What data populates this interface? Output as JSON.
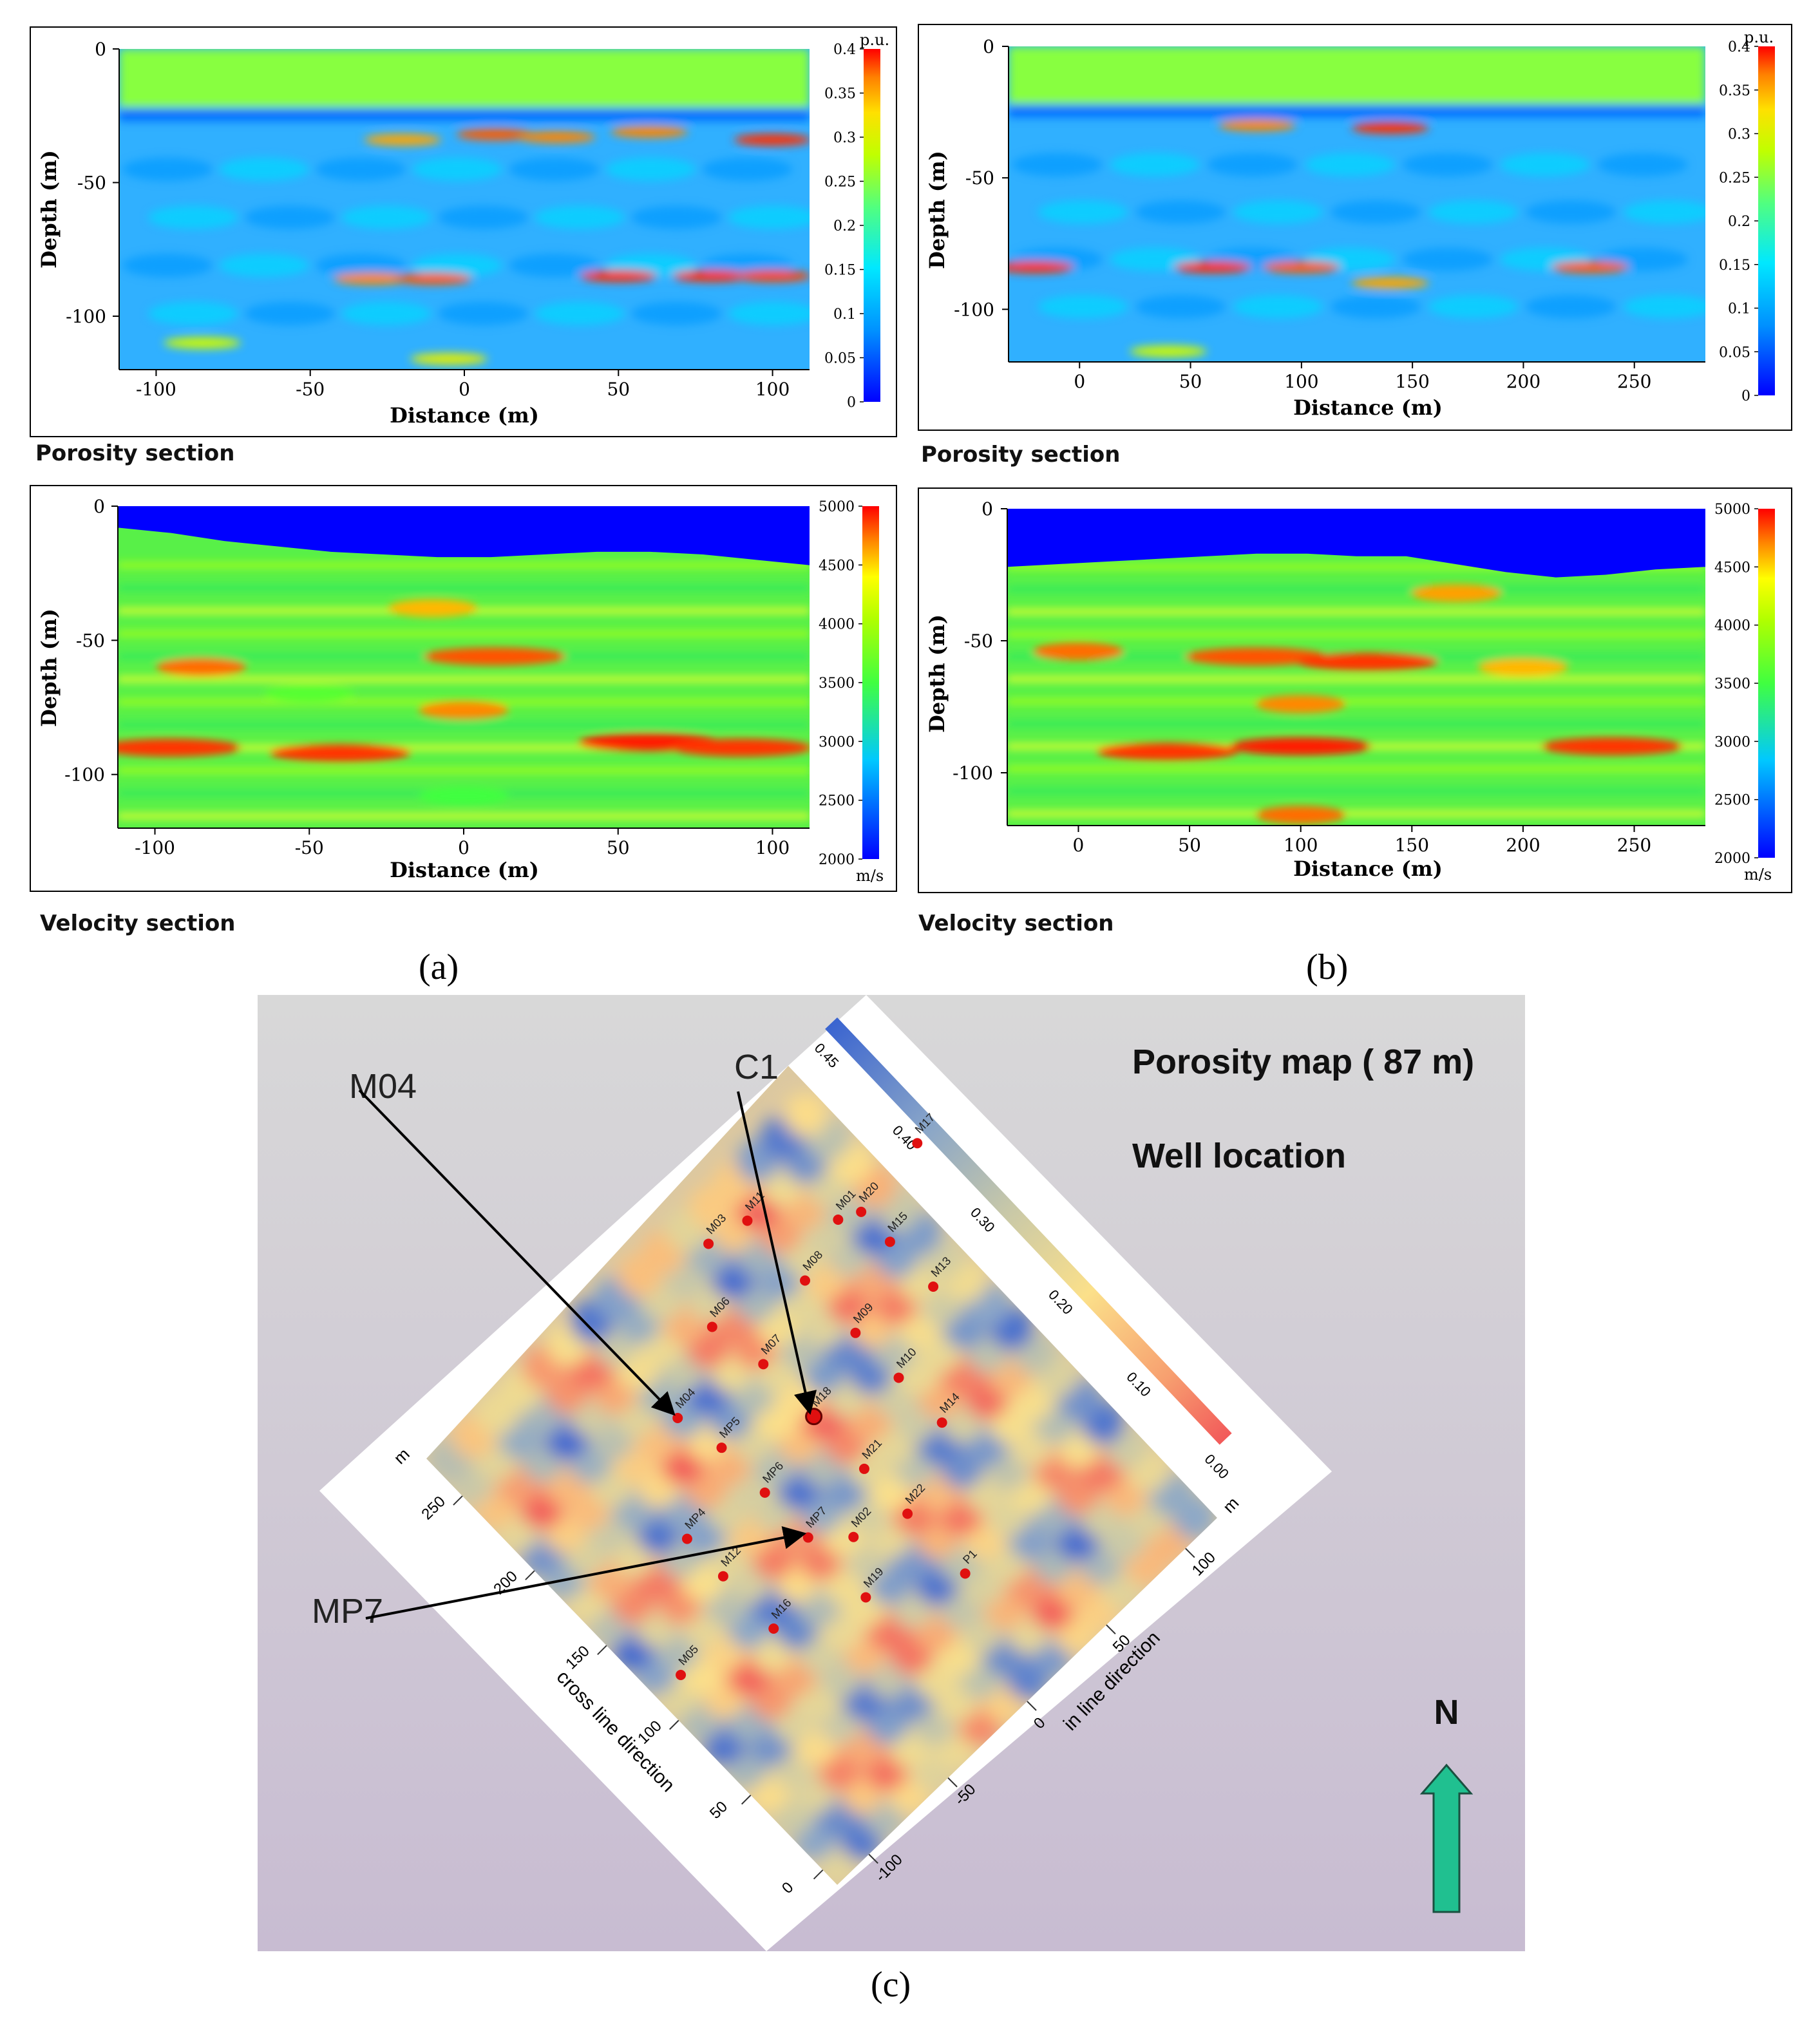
{
  "colors": {
    "porosity_section": [
      "#0000ff",
      "#0090ff",
      "#00e8ff",
      "#50ff80",
      "#c0ff00",
      "#ffe000",
      "#ff8000",
      "#ff0000"
    ],
    "velocity_section": [
      "#0000ff",
      "#00c8ff",
      "#40ff40",
      "#b0ff00",
      "#ffff00",
      "#ff8800",
      "#ff0000"
    ],
    "porosity_map": [
      "#f25a5a",
      "#f7a070",
      "#fbe08a",
      "#c8c8a8",
      "#8aa6c8",
      "#3a64d0"
    ],
    "north_arrow": "#20c090",
    "marker": "#e01010"
  },
  "panels": {
    "a": "(a)",
    "b": "(b)",
    "c": "(c)"
  },
  "captions": {
    "a_porosity": "Porosity section",
    "a_velocity": "Velocity section",
    "b_porosity": "Porosity section",
    "b_velocity": "Velocity section"
  },
  "chart_data": [
    {
      "id": "a-porosity",
      "type": "heatmap",
      "title": "Porosity section",
      "xlabel": "Distance (m)",
      "ylabel": "Depth (m)",
      "xlim": [
        -112,
        112
      ],
      "ylim": [
        -120,
        0
      ],
      "x_ticks": [
        -100,
        -50,
        0,
        50,
        100
      ],
      "x_tick_labels": [
        "-100",
        "-50",
        "0",
        "50",
        "100"
      ],
      "y_ticks": [
        0,
        -50,
        -100
      ],
      "y_tick_labels": [
        "0",
        "-50",
        "-100"
      ],
      "colorbar": {
        "unit": "p.u.",
        "range": [
          0,
          0.4
        ],
        "ticks": [
          "0.4",
          "0.35",
          "0.3",
          "0.25",
          "0.2",
          "0.15",
          "0.1",
          "0.05",
          "0"
        ]
      },
      "top_layer_value": 0.2,
      "background_value": 0.08,
      "features": [
        {
          "x": -20,
          "depth": -34,
          "value": 0.32
        },
        {
          "x": 10,
          "depth": -32,
          "value": 0.36
        },
        {
          "x": 30,
          "depth": -33,
          "value": 0.34
        },
        {
          "x": 60,
          "depth": -31,
          "value": 0.34
        },
        {
          "x": 100,
          "depth": -34,
          "value": 0.38
        },
        {
          "x": -30,
          "depth": -86,
          "value": 0.34
        },
        {
          "x": -10,
          "depth": -86,
          "value": 0.36
        },
        {
          "x": 50,
          "depth": -85,
          "value": 0.38
        },
        {
          "x": 80,
          "depth": -85,
          "value": 0.38
        },
        {
          "x": 100,
          "depth": -85,
          "value": 0.37
        },
        {
          "x": -85,
          "depth": -110,
          "value": 0.24
        },
        {
          "x": -5,
          "depth": -116,
          "value": 0.26
        }
      ]
    },
    {
      "id": "b-porosity",
      "type": "heatmap",
      "title": "Porosity section",
      "xlabel": "Distance (m)",
      "ylabel": "Depth (m)",
      "xlim": [
        -32,
        282
      ],
      "ylim": [
        -120,
        0
      ],
      "x_ticks": [
        0,
        50,
        100,
        150,
        200,
        250
      ],
      "x_tick_labels": [
        "0",
        "50",
        "100",
        "150",
        "200",
        "250"
      ],
      "y_ticks": [
        0,
        -50,
        -100
      ],
      "y_tick_labels": [
        "0",
        "-50",
        "-100"
      ],
      "colorbar": {
        "unit": "p.u.",
        "range": [
          0,
          0.4
        ],
        "ticks": [
          "0.4",
          "0.35",
          "0.3",
          "0.25",
          "0.2",
          "0.15",
          "0.1",
          "0.05",
          "0"
        ]
      },
      "top_layer_value": 0.2,
      "background_value": 0.08,
      "features": [
        {
          "x": 80,
          "depth": -30,
          "value": 0.34
        },
        {
          "x": 140,
          "depth": -31,
          "value": 0.38
        },
        {
          "x": -20,
          "depth": -84,
          "value": 0.38
        },
        {
          "x": 60,
          "depth": -84,
          "value": 0.38
        },
        {
          "x": 100,
          "depth": -84,
          "value": 0.36
        },
        {
          "x": 140,
          "depth": -90,
          "value": 0.32
        },
        {
          "x": 230,
          "depth": -84,
          "value": 0.36
        },
        {
          "x": 40,
          "depth": -116,
          "value": 0.24
        }
      ]
    },
    {
      "id": "a-velocity",
      "type": "heatmap",
      "title": "Velocity section",
      "xlabel": "Distance (m)",
      "ylabel": "Depth (m)",
      "xlim": [
        -112,
        112
      ],
      "ylim": [
        -120,
        0
      ],
      "x_ticks": [
        -100,
        -50,
        0,
        50,
        100
      ],
      "x_tick_labels": [
        "-100",
        "-50",
        "0",
        "50",
        "100"
      ],
      "y_ticks": [
        0,
        -50,
        -100
      ],
      "y_tick_labels": [
        "0",
        "-50",
        "-100"
      ],
      "colorbar": {
        "unit": "m/s",
        "range": [
          2000,
          5000
        ],
        "ticks": [
          "5000",
          "4500",
          "4000",
          "3500",
          "3000",
          "2500",
          "2000"
        ]
      },
      "air_value": 2000,
      "background_value": 3700,
      "features": [
        {
          "x": -85,
          "depth": -60,
          "value": 4600
        },
        {
          "x": 10,
          "depth": -56,
          "value": 4700
        },
        {
          "x": -95,
          "depth": -90,
          "value": 4800
        },
        {
          "x": -40,
          "depth": -92,
          "value": 4800
        },
        {
          "x": 60,
          "depth": -88,
          "value": 4900
        },
        {
          "x": 90,
          "depth": -90,
          "value": 4800
        },
        {
          "x": 0,
          "depth": -76,
          "value": 4500
        },
        {
          "x": -10,
          "depth": -38,
          "value": 4300
        },
        {
          "x": 0,
          "depth": -108,
          "value": 3000
        },
        {
          "x": -50,
          "depth": -70,
          "value": 3100
        }
      ]
    },
    {
      "id": "b-velocity",
      "type": "heatmap",
      "title": "Velocity section",
      "xlabel": "Distance (m)",
      "ylabel": "Depth (m)",
      "xlim": [
        -32,
        282
      ],
      "ylim": [
        -120,
        0
      ],
      "x_ticks": [
        0,
        50,
        100,
        150,
        200,
        250
      ],
      "x_tick_labels": [
        "0",
        "50",
        "100",
        "150",
        "200",
        "250"
      ],
      "y_ticks": [
        0,
        -50,
        -100
      ],
      "y_tick_labels": [
        "0",
        "-50",
        "-100"
      ],
      "colorbar": {
        "unit": "m/s",
        "range": [
          2000,
          5000
        ],
        "ticks": [
          "5000",
          "4500",
          "4000",
          "3500",
          "3000",
          "2500",
          "2000"
        ]
      },
      "air_value": 2000,
      "background_value": 3700,
      "features": [
        {
          "x": 0,
          "depth": -54,
          "value": 4600
        },
        {
          "x": 80,
          "depth": -56,
          "value": 4700
        },
        {
          "x": 130,
          "depth": -58,
          "value": 4800
        },
        {
          "x": 100,
          "depth": -74,
          "value": 4500
        },
        {
          "x": 40,
          "depth": -92,
          "value": 4800
        },
        {
          "x": 100,
          "depth": -90,
          "value": 4900
        },
        {
          "x": 240,
          "depth": -90,
          "value": 4800
        },
        {
          "x": 170,
          "depth": -32,
          "value": 4400
        },
        {
          "x": 200,
          "depth": -60,
          "value": 4300
        },
        {
          "x": 100,
          "depth": -116,
          "value": 4600
        }
      ]
    },
    {
      "id": "c-porosity-map",
      "type": "heatmap",
      "title": "Porosity map ( 87 m)",
      "subtitle": "Well location",
      "xlabel": "in line direction",
      "ylabel": "cross line direction",
      "inline_ticks": [
        "-100",
        "-50",
        "0",
        "50",
        "100"
      ],
      "inline_unit": "m",
      "inline_range": [
        -120,
        120
      ],
      "crossline_ticks": [
        "0",
        "50",
        "100",
        "150",
        "200",
        "250"
      ],
      "crossline_unit": "m",
      "crossline_range": [
        -10,
        275
      ],
      "colorbar": {
        "range": [
          0,
          0.45
        ],
        "ticks": [
          "0.45",
          "0.40",
          "0.30",
          "0.20",
          "0.10",
          "0.00"
        ]
      },
      "wells": [
        {
          "name": "M03",
          "inline": 40,
          "crossline": 255
        },
        {
          "name": "M04",
          "inline": -25,
          "crossline": 205
        },
        {
          "name": "M06",
          "inline": 15,
          "crossline": 225
        },
        {
          "name": "M11",
          "inline": 60,
          "crossline": 250
        },
        {
          "name": "MP4",
          "inline": -60,
          "crossline": 160
        },
        {
          "name": "MP5",
          "inline": -20,
          "crossline": 180
        },
        {
          "name": "M07",
          "inline": 20,
          "crossline": 195
        },
        {
          "name": "M08",
          "inline": 60,
          "crossline": 210
        },
        {
          "name": "M01",
          "inline": 90,
          "crossline": 220
        },
        {
          "name": "M20",
          "inline": 100,
          "crossline": 215
        },
        {
          "name": "M05",
          "inline": -105,
          "crossline": 115
        },
        {
          "name": "M12",
          "inline": -60,
          "crossline": 135
        },
        {
          "name": "MP6",
          "inline": -20,
          "crossline": 150
        },
        {
          "name": "M18",
          "inline": 20,
          "crossline": 160
        },
        {
          "name": "M09",
          "inline": 60,
          "crossline": 175
        },
        {
          "name": "M15",
          "inline": 100,
          "crossline": 195
        },
        {
          "name": "M17",
          "inline": 140,
          "crossline": 220
        },
        {
          "name": "M16",
          "inline": -60,
          "crossline": 100
        },
        {
          "name": "MP7",
          "inline": -20,
          "crossline": 120
        },
        {
          "name": "M02",
          "inline": -5,
          "crossline": 105
        },
        {
          "name": "M21",
          "inline": 20,
          "crossline": 125
        },
        {
          "name": "M10",
          "inline": 60,
          "crossline": 145
        },
        {
          "name": "M13",
          "inline": 100,
          "crossline": 165
        },
        {
          "name": "M19",
          "inline": -20,
          "crossline": 80
        },
        {
          "name": "M22",
          "inline": 20,
          "crossline": 95
        },
        {
          "name": "M14",
          "inline": 60,
          "crossline": 115
        },
        {
          "name": "P1",
          "inline": 20,
          "crossline": 55
        }
      ],
      "callouts": [
        {
          "label": "C1",
          "target": "M18"
        },
        {
          "label": "M04",
          "target": "M04"
        },
        {
          "label": "MP7",
          "target": "MP7"
        }
      ],
      "north_label": "N"
    }
  ]
}
